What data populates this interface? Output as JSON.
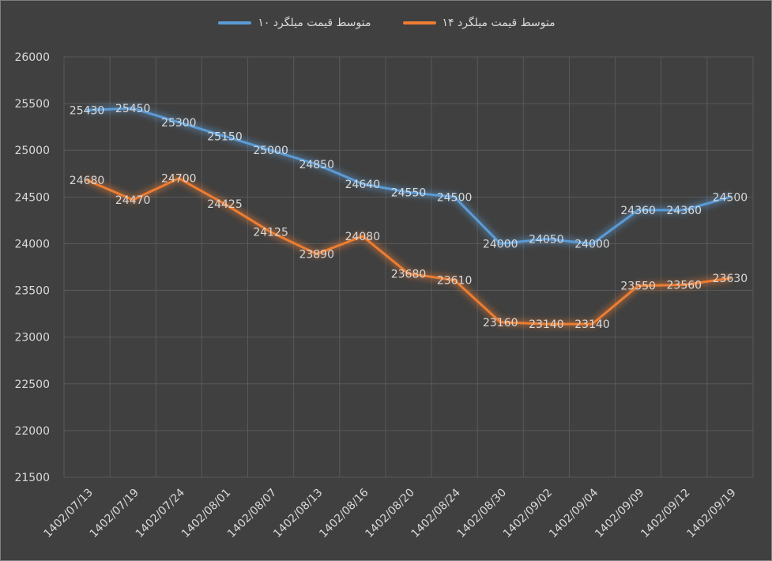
{
  "chart_data": {
    "type": "line",
    "title": "",
    "xlabel": "",
    "ylabel": "",
    "categories": [
      "1402/07/13",
      "1402/07/19",
      "1402/07/24",
      "1402/08/01",
      "1402/08/07",
      "1402/08/13",
      "1402/08/16",
      "1402/08/20",
      "1402/08/24",
      "1402/08/30",
      "1402/09/02",
      "1402/09/04",
      "1402/09/09",
      "1402/09/12",
      "1402/09/19"
    ],
    "ylim": [
      21500,
      26000
    ],
    "yticks": [
      21500,
      22000,
      22500,
      23000,
      23500,
      24000,
      24500,
      25000,
      25500,
      26000
    ],
    "grid": true,
    "legend_position": "top",
    "series": [
      {
        "name": "متوسط قیمت میلگرد ۱۰",
        "color": "#5b9bd5",
        "values": [
          25430,
          25450,
          25300,
          25150,
          25000,
          24850,
          24640,
          24550,
          24500,
          24000,
          24050,
          24000,
          24360,
          24360,
          24500
        ]
      },
      {
        "name": "متوسط قیمت میلگرد ۱۴",
        "color": "#ed7d31",
        "values": [
          24680,
          24470,
          24700,
          24425,
          24125,
          23890,
          24080,
          23680,
          23610,
          23160,
          23140,
          23140,
          23550,
          23560,
          23630
        ]
      }
    ]
  }
}
